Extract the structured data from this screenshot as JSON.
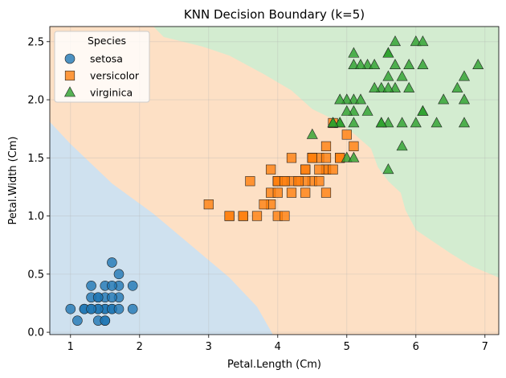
{
  "chart_data": {
    "type": "scatter",
    "title": "KNN Decision Boundary (k=5)",
    "xlabel": "Petal.Length (Cm)",
    "ylabel": "Petal.Width (Cm)",
    "xlim": [
      0.7,
      7.2
    ],
    "ylim": [
      -0.02,
      2.63
    ],
    "x_ticks": [
      1,
      2,
      3,
      4,
      5,
      6,
      7
    ],
    "y_ticks": [
      0.0,
      0.5,
      1.0,
      1.5,
      2.0,
      2.5
    ],
    "grid": true,
    "legend": {
      "title": "Species",
      "position": "top-left"
    },
    "regions": [
      {
        "label": "setosa",
        "color": "#cfe1ef"
      },
      {
        "label": "versicolor",
        "color": "#fde0c5"
      },
      {
        "label": "virginica",
        "color": "#d3ecd0"
      }
    ],
    "series": [
      {
        "name": "setosa",
        "marker": "circle",
        "color": "#1f77b4",
        "points": [
          [
            1.4,
            0.2
          ],
          [
            1.3,
            0.2
          ],
          [
            1.5,
            0.2
          ],
          [
            1.7,
            0.4
          ],
          [
            1.4,
            0.3
          ],
          [
            1.5,
            0.1
          ],
          [
            1.6,
            0.2
          ],
          [
            1.1,
            0.1
          ],
          [
            1.2,
            0.2
          ],
          [
            1.5,
            0.4
          ],
          [
            1.3,
            0.4
          ],
          [
            1.3,
            0.3
          ],
          [
            1.7,
            0.3
          ],
          [
            1.5,
            0.3
          ],
          [
            1.0,
            0.2
          ],
          [
            1.7,
            0.5
          ],
          [
            1.9,
            0.2
          ],
          [
            1.6,
            0.4
          ],
          [
            1.4,
            0.1
          ],
          [
            1.5,
            0.2
          ],
          [
            1.2,
            0.2
          ],
          [
            1.6,
            0.6
          ],
          [
            1.9,
            0.4
          ],
          [
            1.6,
            0.2
          ],
          [
            1.4,
            0.2
          ],
          [
            1.3,
            0.2
          ],
          [
            1.6,
            0.3
          ],
          [
            1.7,
            0.2
          ],
          [
            1.4,
            0.3
          ],
          [
            1.5,
            0.1
          ]
        ]
      },
      {
        "name": "versicolor",
        "marker": "square",
        "color": "#ff7f0e",
        "points": [
          [
            4.7,
            1.4
          ],
          [
            4.5,
            1.5
          ],
          [
            4.9,
            1.5
          ],
          [
            4.0,
            1.3
          ],
          [
            4.6,
            1.5
          ],
          [
            4.5,
            1.3
          ],
          [
            4.7,
            1.6
          ],
          [
            3.3,
            1.0
          ],
          [
            4.6,
            1.3
          ],
          [
            3.9,
            1.4
          ],
          [
            3.5,
            1.0
          ],
          [
            4.2,
            1.5
          ],
          [
            4.0,
            1.0
          ],
          [
            4.7,
            1.4
          ],
          [
            3.6,
            1.3
          ],
          [
            4.4,
            1.4
          ],
          [
            4.5,
            1.5
          ],
          [
            4.1,
            1.0
          ],
          [
            4.5,
            1.5
          ],
          [
            3.9,
            1.1
          ],
          [
            4.8,
            1.8
          ],
          [
            4.0,
            1.3
          ],
          [
            4.9,
            1.5
          ],
          [
            4.7,
            1.2
          ],
          [
            4.3,
            1.3
          ],
          [
            4.4,
            1.4
          ],
          [
            4.8,
            1.4
          ],
          [
            5.0,
            1.7
          ],
          [
            4.5,
            1.5
          ],
          [
            3.5,
            1.0
          ],
          [
            3.8,
            1.1
          ],
          [
            3.7,
            1.0
          ],
          [
            3.9,
            1.2
          ],
          [
            5.1,
            1.6
          ],
          [
            4.5,
            1.5
          ],
          [
            4.7,
            1.5
          ],
          [
            4.4,
            1.3
          ],
          [
            4.1,
            1.3
          ],
          [
            4.0,
            1.3
          ],
          [
            4.4,
            1.2
          ],
          [
            4.6,
            1.4
          ],
          [
            4.0,
            1.2
          ],
          [
            3.3,
            1.0
          ],
          [
            4.2,
            1.3
          ],
          [
            4.2,
            1.2
          ],
          [
            4.3,
            1.3
          ],
          [
            3.0,
            1.1
          ],
          [
            4.1,
            1.3
          ]
        ]
      },
      {
        "name": "virginica",
        "marker": "triangle",
        "color": "#2ca02c",
        "points": [
          [
            6.0,
            2.5
          ],
          [
            5.1,
            1.9
          ],
          [
            5.9,
            2.1
          ],
          [
            5.6,
            1.8
          ],
          [
            5.8,
            2.2
          ],
          [
            6.6,
            2.1
          ],
          [
            4.5,
            1.7
          ],
          [
            6.3,
            1.8
          ],
          [
            5.8,
            1.8
          ],
          [
            6.1,
            2.5
          ],
          [
            5.1,
            2.0
          ],
          [
            5.3,
            1.9
          ],
          [
            5.5,
            2.1
          ],
          [
            5.0,
            2.0
          ],
          [
            5.1,
            2.4
          ],
          [
            5.3,
            2.3
          ],
          [
            5.5,
            1.8
          ],
          [
            6.7,
            2.2
          ],
          [
            6.9,
            2.3
          ],
          [
            5.0,
            1.5
          ],
          [
            5.7,
            2.3
          ],
          [
            4.9,
            2.0
          ],
          [
            6.7,
            2.0
          ],
          [
            4.9,
            1.8
          ],
          [
            5.7,
            2.1
          ],
          [
            6.0,
            1.8
          ],
          [
            4.8,
            1.8
          ],
          [
            4.9,
            1.8
          ],
          [
            5.6,
            2.1
          ],
          [
            5.8,
            1.6
          ],
          [
            6.1,
            1.9
          ],
          [
            6.4,
            2.0
          ],
          [
            5.6,
            2.2
          ],
          [
            5.1,
            1.5
          ],
          [
            5.6,
            1.4
          ],
          [
            6.1,
            2.3
          ],
          [
            5.6,
            2.4
          ],
          [
            5.5,
            1.8
          ],
          [
            4.8,
            1.8
          ],
          [
            5.4,
            2.1
          ],
          [
            5.6,
            2.4
          ],
          [
            5.1,
            2.3
          ],
          [
            5.9,
            2.3
          ],
          [
            5.7,
            2.5
          ],
          [
            5.2,
            2.3
          ],
          [
            5.0,
            1.9
          ],
          [
            5.2,
            2.0
          ],
          [
            5.4,
            2.3
          ],
          [
            5.1,
            1.8
          ],
          [
            6.7,
            1.8
          ],
          [
            6.1,
            1.9
          ]
        ]
      }
    ]
  }
}
